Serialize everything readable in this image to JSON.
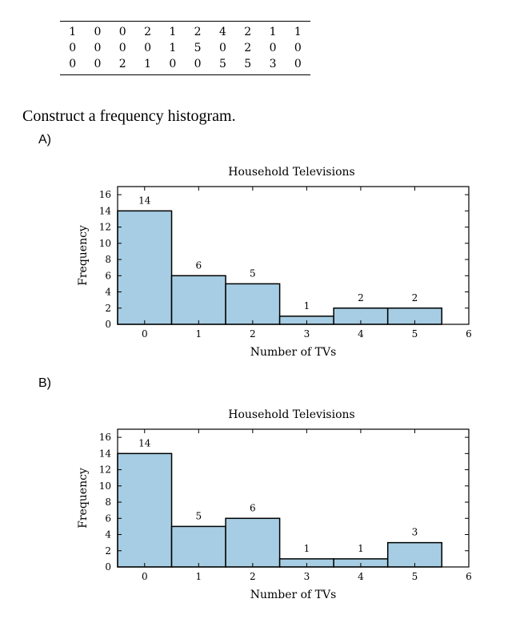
{
  "table": {
    "rows": [
      [
        "1",
        "0",
        "0",
        "2",
        "1",
        "2",
        "4",
        "2",
        "1",
        "1"
      ],
      [
        "0",
        "0",
        "0",
        "0",
        "1",
        "5",
        "0",
        "2",
        "0",
        "0"
      ],
      [
        "0",
        "0",
        "2",
        "1",
        "0",
        "0",
        "5",
        "5",
        "3",
        "0"
      ]
    ]
  },
  "question": "Construct a frequency histogram.",
  "options": [
    {
      "label": "A)"
    },
    {
      "label": "B)"
    }
  ],
  "chart_data": [
    {
      "type": "bar",
      "title": "Household Televisions",
      "xlabel": "Number of TVs",
      "ylabel": "Frequency",
      "categories": [
        0,
        1,
        2,
        3,
        4,
        5
      ],
      "values": [
        14,
        6,
        5,
        1,
        2,
        2
      ],
      "data_labels": [
        "14",
        "6",
        "5",
        "1",
        "2",
        "2"
      ],
      "xlim": [
        -0.5,
        6
      ],
      "ylim": [
        0,
        17
      ],
      "xticks": [
        0,
        1,
        2,
        3,
        4,
        5,
        6
      ],
      "yticks": [
        0,
        2,
        4,
        6,
        8,
        10,
        12,
        14,
        16
      ],
      "bar_color": "#a6cde3",
      "grid": false
    },
    {
      "type": "bar",
      "title": "Household Televisions",
      "xlabel": "Number of TVs",
      "ylabel": "Frequency",
      "categories": [
        0,
        1,
        2,
        3,
        4,
        5
      ],
      "values": [
        14,
        5,
        6,
        1,
        1,
        3
      ],
      "data_labels": [
        "14",
        "5",
        "6",
        "1",
        "1",
        "3"
      ],
      "xlim": [
        -0.5,
        6
      ],
      "ylim": [
        0,
        17
      ],
      "xticks": [
        0,
        1,
        2,
        3,
        4,
        5,
        6
      ],
      "yticks": [
        0,
        2,
        4,
        6,
        8,
        10,
        12,
        14,
        16
      ],
      "bar_color": "#a6cde3",
      "grid": false
    }
  ]
}
